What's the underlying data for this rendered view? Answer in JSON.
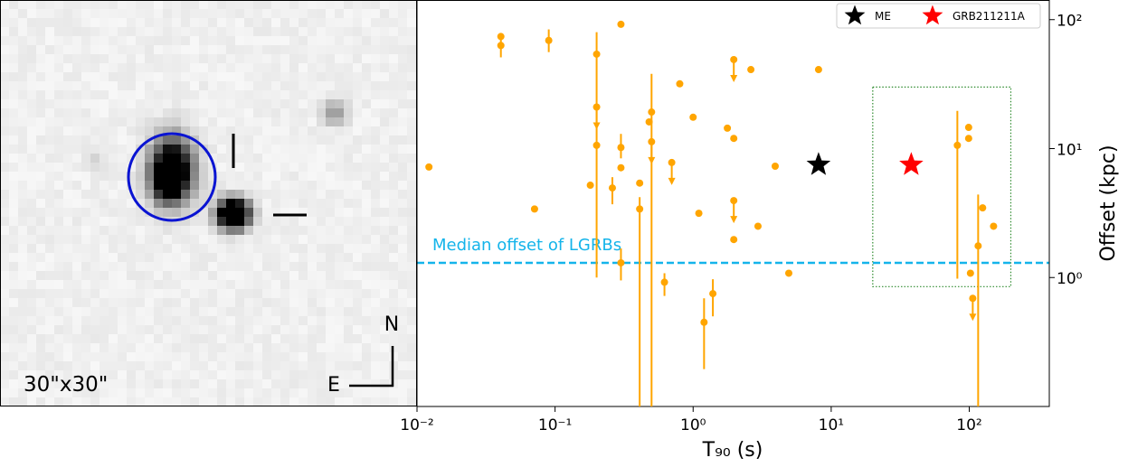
{
  "image": {
    "scale_label": "30\"x30\"",
    "north": "N",
    "east": "E"
  },
  "chart_data": {
    "type": "scatter",
    "xlabel": "T₉₀ (s)",
    "ylabel": "Offset (kpc)",
    "log_x": true,
    "log_y": true,
    "xlim": [
      0.01,
      380
    ],
    "ylim": [
      0.1,
      142
    ],
    "xticks": [
      {
        "value": 0.01,
        "label": "10⁻²"
      },
      {
        "value": 0.1,
        "label": "10⁻¹"
      },
      {
        "value": 1,
        "label": "10⁰"
      },
      {
        "value": 10,
        "label": "10¹"
      },
      {
        "value": 100,
        "label": "10²"
      }
    ],
    "yticks": [
      {
        "value": 1,
        "label": "10⁰"
      },
      {
        "value": 10,
        "label": "10¹"
      },
      {
        "value": 100,
        "label": "10²"
      }
    ],
    "legend": "upper right",
    "reference_line": {
      "label": "Median offset of LGRBs",
      "value": 1.3,
      "color": "#14b4ea"
    },
    "highlight_box": {
      "xlim": [
        20,
        200
      ],
      "ylim": [
        0.85,
        30
      ],
      "color": "#2e8b2e"
    },
    "series": [
      {
        "color": "#ffa500",
        "marker": "circle",
        "x": [
          0.0122,
          0.0405,
          0.0405,
          0.09,
          0.071,
          0.3,
          0.2,
          0.2,
          0.2,
          0.18,
          0.3,
          0.3,
          0.3,
          0.26,
          0.41,
          0.41,
          0.48,
          0.5,
          0.5,
          0.7,
          0.62,
          0.8,
          1.0,
          1.1,
          1.2,
          1.39,
          1.97,
          1.77,
          1.97,
          1.97,
          1.97,
          2.62,
          2.95,
          3.93,
          4.93,
          8.1,
          82,
          99,
          99,
          102,
          106,
          116,
          125,
          150
        ],
        "values": [
          7.2,
          74,
          63,
          69,
          3.4,
          92,
          54,
          21,
          10.6,
          5.2,
          10.2,
          7.1,
          1.3,
          4.95,
          5.4,
          3.4,
          16.1,
          19.2,
          11.3,
          7.8,
          0.92,
          31.8,
          17.5,
          3.15,
          0.45,
          0.75,
          49,
          14.4,
          12,
          3.95,
          1.97,
          41,
          2.5,
          7.3,
          1.08,
          41,
          10.6,
          14.6,
          12,
          1.08,
          0.69,
          1.76,
          3.47,
          2.5
        ],
        "y_low": [
          null,
          null,
          51,
          56,
          null,
          null,
          1.0,
          null,
          null,
          null,
          8.4,
          null,
          0.95,
          3.7,
          null,
          0.1,
          null,
          0.1,
          null,
          null,
          0.72,
          null,
          null,
          null,
          0.195,
          0.5,
          null,
          null,
          null,
          null,
          null,
          null,
          null,
          null,
          null,
          null,
          0.98,
          null,
          null,
          null,
          null,
          0.1,
          null,
          null
        ],
        "y_high": [
          null,
          null,
          77,
          84,
          null,
          null,
          80,
          null,
          null,
          null,
          13,
          null,
          1.68,
          6.0,
          null,
          4.2,
          null,
          38,
          null,
          null,
          1.08,
          null,
          null,
          null,
          0.69,
          0.97,
          null,
          null,
          null,
          null,
          null,
          null,
          null,
          null,
          null,
          null,
          19.6,
          null,
          null,
          null,
          null,
          4.4,
          null,
          null
        ],
        "upper_limit": [
          false,
          false,
          false,
          false,
          false,
          false,
          false,
          true,
          false,
          false,
          false,
          false,
          false,
          false,
          false,
          false,
          false,
          false,
          true,
          true,
          false,
          false,
          false,
          false,
          false,
          false,
          true,
          false,
          false,
          true,
          false,
          false,
          false,
          false,
          false,
          false,
          false,
          false,
          false,
          false,
          true,
          false,
          false,
          false
        ]
      },
      {
        "name": "ME",
        "color": "#000000",
        "marker": "star",
        "x": [
          8.1
        ],
        "values": [
          7.5
        ]
      },
      {
        "name": "GRB211211A",
        "color": "#ff0000",
        "marker": "star",
        "x": [
          38
        ],
        "values": [
          7.5
        ]
      }
    ]
  }
}
